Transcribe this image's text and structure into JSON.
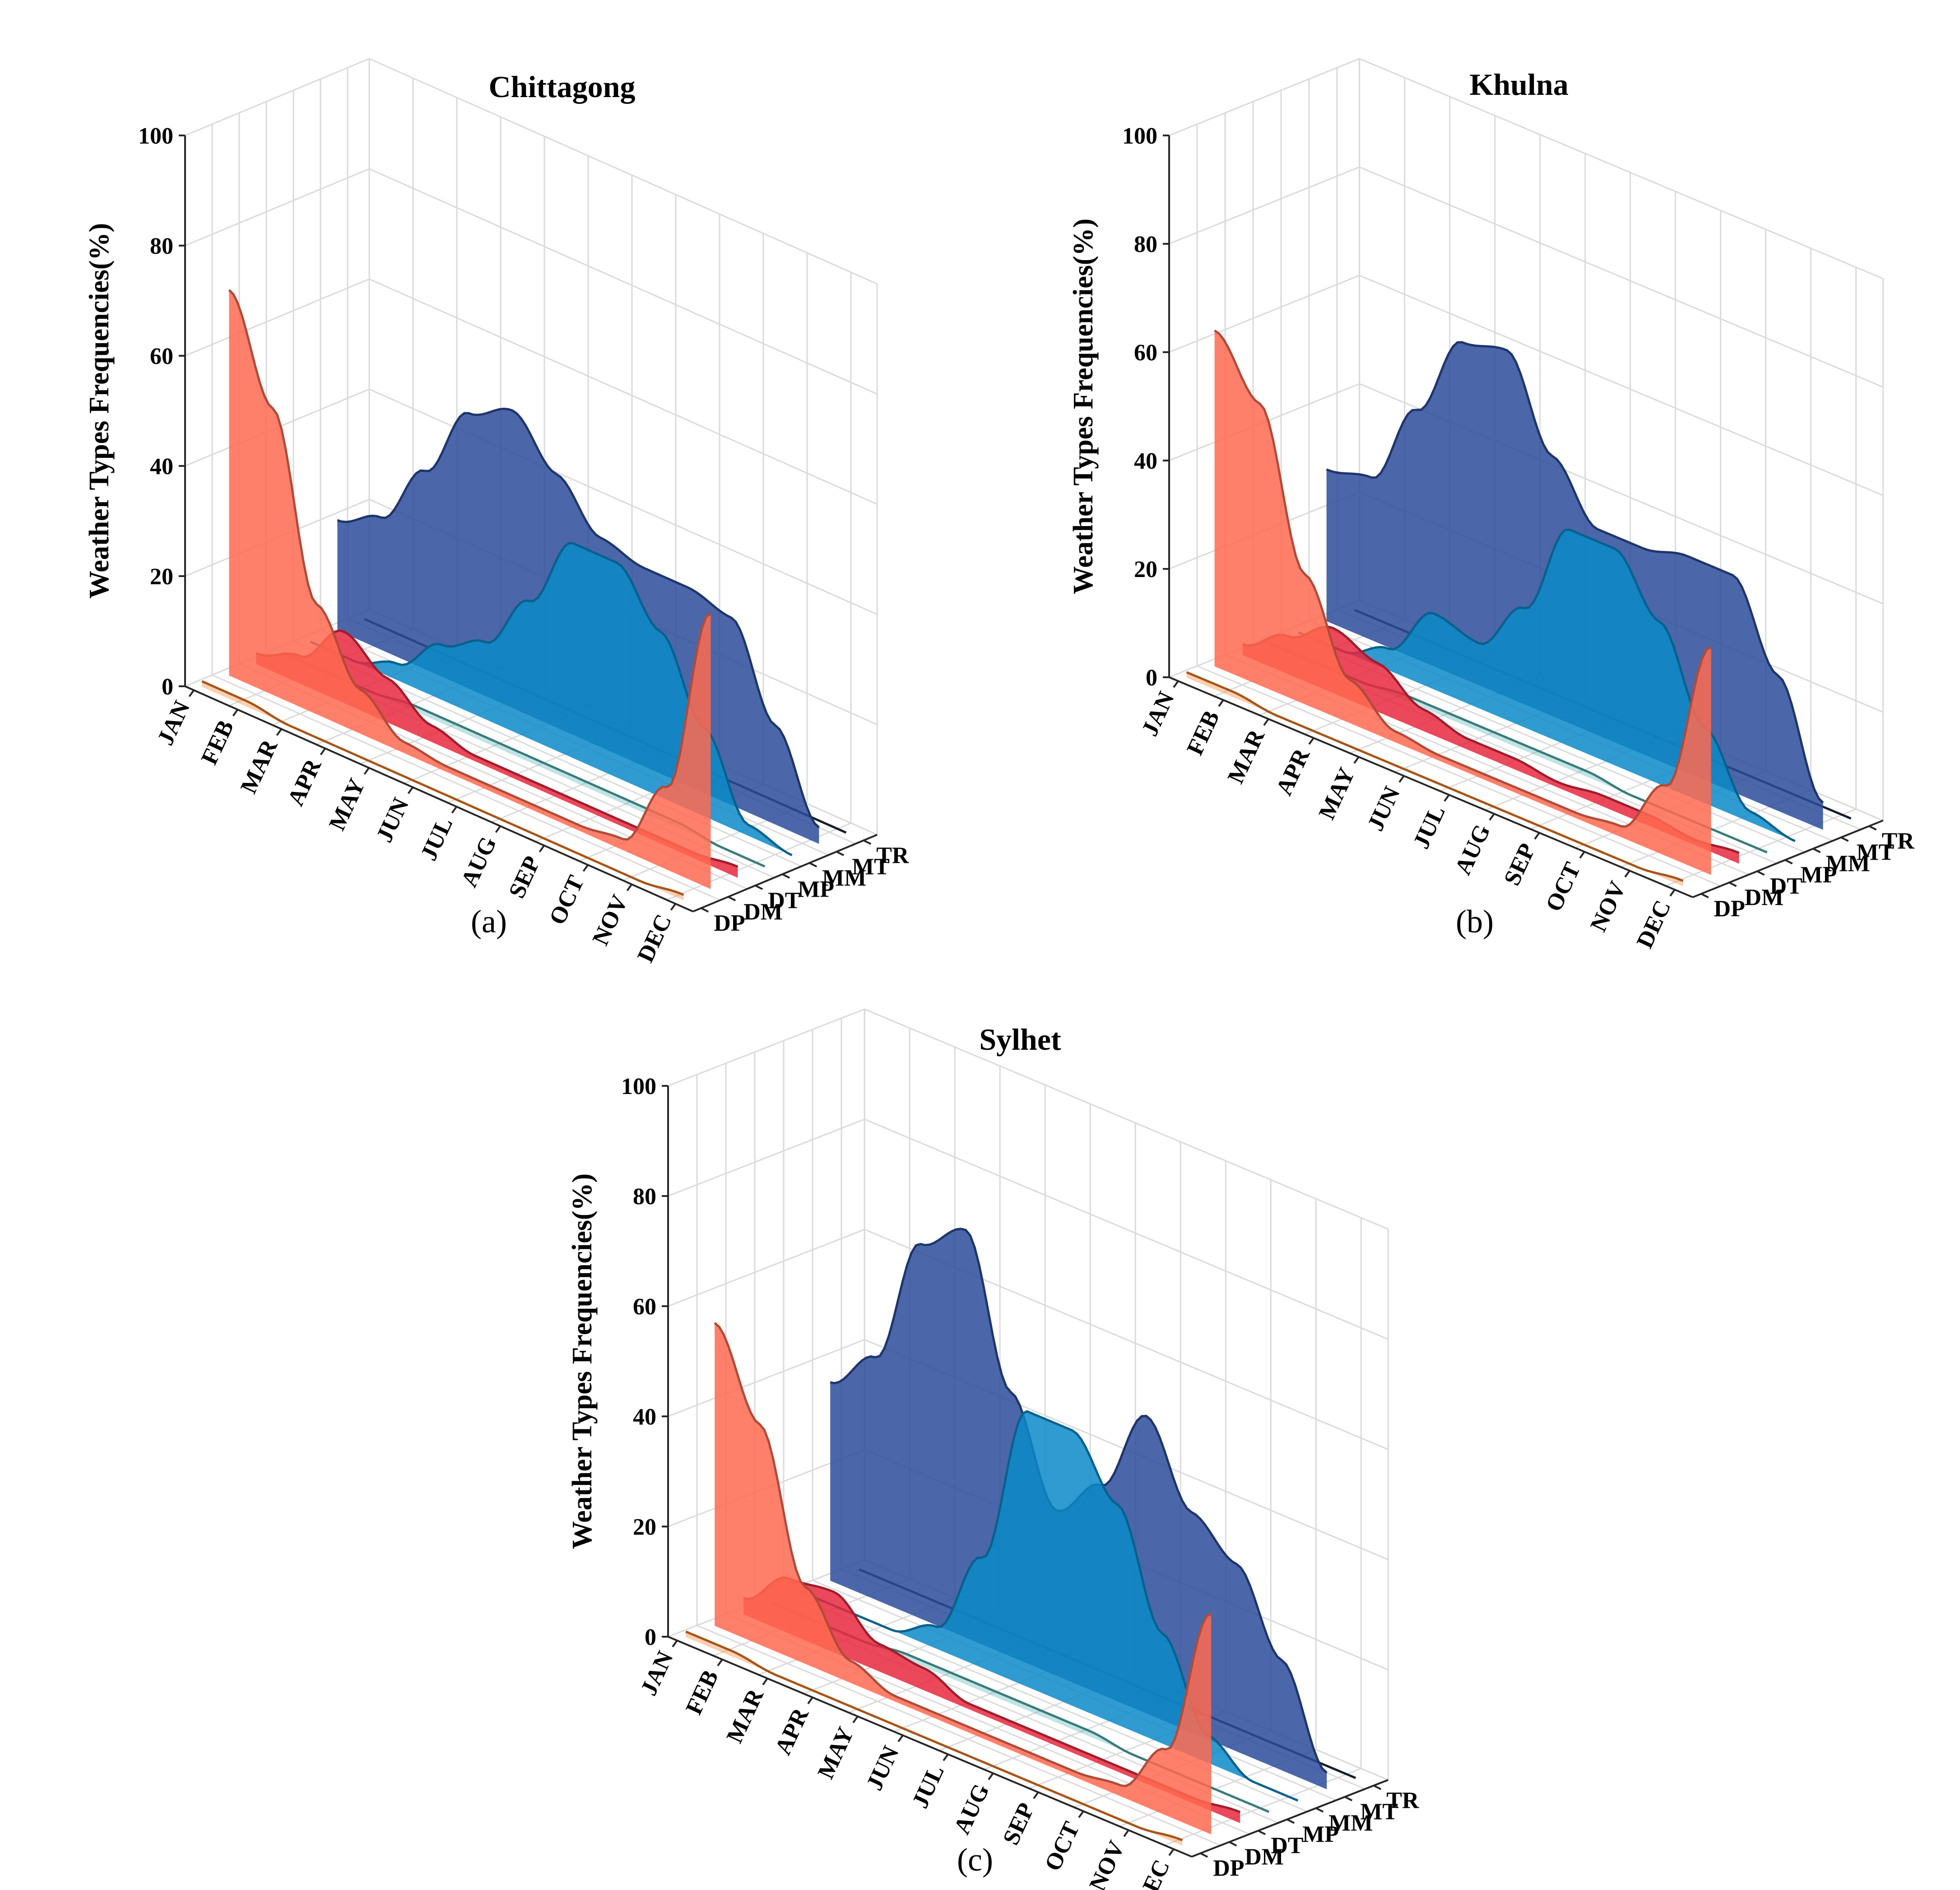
{
  "figure_labels": {
    "a": "(a)",
    "b": "(b)",
    "c": "(c)"
  },
  "chart_data": [
    {
      "type": "area",
      "title": "Chittagong",
      "ylabel": "Weather Types Frequencies(%)",
      "zticks": [
        "0",
        "20",
        "40",
        "60",
        "80",
        "100"
      ],
      "ylim": [
        0,
        100
      ],
      "months": [
        "JAN",
        "FEB",
        "MAR",
        "APR",
        "MAY",
        "JUN",
        "JUL",
        "AUG",
        "SEP",
        "OCT",
        "NOV",
        "DEC"
      ],
      "weather_types": [
        "DP",
        "DM",
        "DT",
        "MP",
        "MM",
        "MT",
        "TR"
      ],
      "series": [
        {
          "name": "DP",
          "color": "#f07820",
          "values": [
            1,
            1,
            0,
            0,
            0,
            0,
            0,
            0,
            0,
            0,
            0,
            1
          ]
        },
        {
          "name": "DM",
          "color": "#ff6a50",
          "values": [
            70,
            52,
            20,
            8,
            2,
            1,
            1,
            1,
            1,
            2,
            15,
            50
          ]
        },
        {
          "name": "DT",
          "color": "#e8283e",
          "values": [
            2,
            5,
            13,
            8,
            3,
            1,
            1,
            1,
            1,
            1,
            1,
            2
          ]
        },
        {
          "name": "MP",
          "color": "#4fb0b0",
          "values": [
            0,
            0,
            0,
            1,
            1,
            1,
            1,
            1,
            1,
            1,
            0,
            0
          ]
        },
        {
          "name": "MM",
          "color": "#0a8ac8",
          "values": [
            0,
            0,
            3,
            10,
            14,
            25,
            39,
            39,
            30,
            16,
            2,
            0
          ]
        },
        {
          "name": "MT",
          "color": "#2b4c9a",
          "values": [
            20,
            24,
            36,
            50,
            54,
            46,
            38,
            36,
            36,
            34,
            18,
            3
          ]
        },
        {
          "name": "TR",
          "color": "#1e2a3c",
          "values": [
            0,
            0,
            0,
            0,
            0,
            0,
            0,
            0,
            0,
            0,
            0,
            0
          ]
        }
      ]
    },
    {
      "type": "area",
      "title": "Khulna",
      "ylabel": "Weather Types Frequencies(%)",
      "zticks": [
        "0",
        "20",
        "40",
        "60",
        "80",
        "100"
      ],
      "ylim": [
        0,
        100
      ],
      "months": [
        "JAN",
        "FEB",
        "MAR",
        "APR",
        "MAY",
        "JUN",
        "JUL",
        "AUG",
        "SEP",
        "OCT",
        "NOV",
        "DEC"
      ],
      "weather_types": [
        "DP",
        "DM",
        "DT",
        "MP",
        "MM",
        "MT",
        "TR"
      ],
      "series": [
        {
          "name": "DP",
          "color": "#f07820",
          "values": [
            1,
            1,
            0,
            0,
            0,
            0,
            0,
            0,
            0,
            0,
            0,
            1
          ]
        },
        {
          "name": "DM",
          "color": "#ff6a50",
          "values": [
            62,
            52,
            24,
            8,
            2,
            1,
            1,
            1,
            1,
            2,
            13,
            42
          ]
        },
        {
          "name": "DT",
          "color": "#e8283e",
          "values": [
            2,
            7,
            12,
            9,
            4,
            2,
            2,
            1,
            2,
            2,
            1,
            2
          ]
        },
        {
          "name": "MP",
          "color": "#4fb0b0",
          "values": [
            0,
            0,
            0,
            1,
            1,
            1,
            1,
            1,
            0,
            0,
            0,
            0
          ]
        },
        {
          "name": "MM",
          "color": "#0a8ac8",
          "values": [
            0,
            0,
            4,
            14,
            12,
            22,
            40,
            40,
            30,
            14,
            2,
            0
          ]
        },
        {
          "name": "MT",
          "color": "#2b4c9a",
          "values": [
            28,
            30,
            46,
            62,
            64,
            48,
            38,
            38,
            40,
            40,
            25,
            5
          ]
        },
        {
          "name": "TR",
          "color": "#1e2a3c",
          "values": [
            0,
            0,
            0,
            0,
            0,
            0,
            0,
            0,
            0,
            0,
            0,
            0
          ]
        }
      ]
    },
    {
      "type": "area",
      "title": "Sylhet",
      "ylabel": "Weather Types Frequencies(%)",
      "zticks": [
        "0",
        "20",
        "40",
        "60",
        "80",
        "100"
      ],
      "ylim": [
        0,
        100
      ],
      "months": [
        "JAN",
        "FEB",
        "MAR",
        "APR",
        "MAY",
        "JUN",
        "JUL",
        "AUG",
        "SEP",
        "OCT",
        "NOV",
        "DEC"
      ],
      "weather_types": [
        "DP",
        "DM",
        "DT",
        "MP",
        "MM",
        "MT",
        "TR"
      ],
      "series": [
        {
          "name": "DP",
          "color": "#f07820",
          "values": [
            1,
            1,
            0,
            0,
            0,
            0,
            0,
            0,
            0,
            0,
            0,
            1
          ]
        },
        {
          "name": "DM",
          "color": "#ff6a50",
          "values": [
            55,
            40,
            14,
            4,
            1,
            1,
            1,
            1,
            1,
            2,
            12,
            40
          ]
        },
        {
          "name": "DT",
          "color": "#e8283e",
          "values": [
            3,
            10,
            11,
            5,
            4,
            1,
            1,
            1,
            1,
            1,
            1,
            2
          ]
        },
        {
          "name": "MP",
          "color": "#4fb0b0",
          "values": [
            0,
            0,
            0,
            1,
            1,
            1,
            1,
            1,
            0,
            0,
            0,
            0
          ]
        },
        {
          "name": "MM",
          "color": "#0a8ac8",
          "values": [
            0,
            0,
            0,
            4,
            20,
            50,
            50,
            40,
            20,
            5,
            0,
            0
          ]
        },
        {
          "name": "MT",
          "color": "#2b4c9a",
          "values": [
            36,
            44,
            68,
            74,
            48,
            30,
            38,
            54,
            40,
            34,
            20,
            3
          ]
        },
        {
          "name": "TR",
          "color": "#1e2a3c",
          "values": [
            0,
            0,
            0,
            0,
            0,
            0,
            0,
            0,
            0,
            0,
            0,
            0
          ]
        }
      ]
    }
  ]
}
